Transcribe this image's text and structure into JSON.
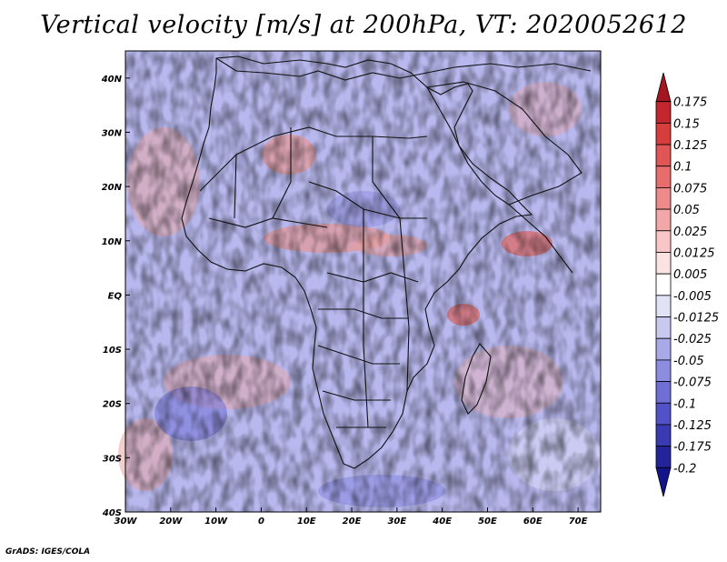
{
  "title": "Vertical velocity [m/s] at 200hPa, VT: 2020052612",
  "credit": "GrADS: IGES/COLA",
  "map": {
    "lon_range": [
      -30,
      75
    ],
    "lat_range": [
      -40,
      45
    ],
    "x_ticks": [
      "30W",
      "20W",
      "10W",
      "0",
      "10E",
      "20E",
      "30E",
      "40E",
      "50E",
      "60E",
      "70E"
    ],
    "x_tick_values": [
      -30,
      -20,
      -10,
      0,
      10,
      20,
      30,
      40,
      50,
      60,
      70
    ],
    "y_ticks": [
      "40S",
      "30S",
      "20S",
      "10S",
      "EQ",
      "10N",
      "20N",
      "30N",
      "40N"
    ],
    "y_tick_values": [
      -40,
      -30,
      -20,
      -10,
      0,
      10,
      20,
      30,
      40
    ]
  },
  "colorbar": {
    "labels": [
      "0.175",
      "0.15",
      "0.125",
      "0.1",
      "0.075",
      "0.05",
      "0.025",
      "0.0125",
      "0.005",
      "-0.005",
      "-0.0125",
      "-0.025",
      "-0.05",
      "-0.075",
      "-0.1",
      "-0.125",
      "-0.175",
      "-0.2"
    ],
    "colors": [
      "#a31621",
      "#c1272d",
      "#d63d3d",
      "#e05555",
      "#e86c6c",
      "#ee8a8a",
      "#f3a8a8",
      "#f8c6c6",
      "#fbe3e3",
      "#ffffff",
      "#e2e2f7",
      "#c8c8f0",
      "#a9a9e8",
      "#8c8ce0",
      "#6f6fd7",
      "#5252c8",
      "#3a3ab3",
      "#24249a",
      "#14148a"
    ]
  }
}
